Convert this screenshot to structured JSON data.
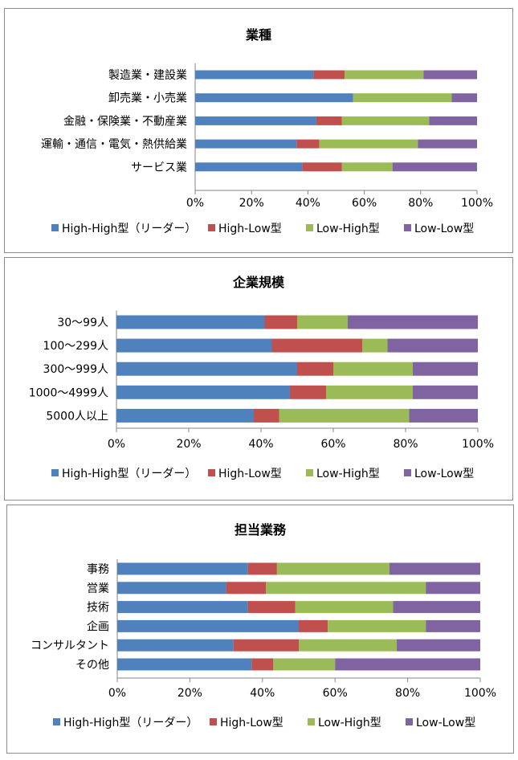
{
  "colors": {
    "High-High型（リーダー）": "#4f81bd",
    "High-Low型": "#c0504d",
    "Low-High型": "#9bbb59",
    "Low-Low型": "#8064a2"
  },
  "chart_data": [
    {
      "type": "bar",
      "orientation": "horizontal",
      "stacked": "percent",
      "title": "業種",
      "categories": [
        "製造業・建設業",
        "卸売業・小売業",
        "金融・保険業・不動産業",
        "運輸・通信・電気・熱供給業",
        "サービス業"
      ],
      "series": [
        {
          "name": "High-High型（リーダー）",
          "values": [
            42,
            56,
            43,
            36,
            38
          ]
        },
        {
          "name": "High-Low型",
          "values": [
            11,
            0,
            9,
            8,
            14
          ]
        },
        {
          "name": "Low-High型",
          "values": [
            28,
            35,
            31,
            35,
            18
          ]
        },
        {
          "name": "Low-Low型",
          "values": [
            19,
            9,
            17,
            21,
            30
          ]
        }
      ],
      "xticks": [
        "0%",
        "20%",
        "40%",
        "60%",
        "80%",
        "100%"
      ],
      "xlim": [
        0,
        100
      ],
      "legend": "bottom"
    },
    {
      "type": "bar",
      "orientation": "horizontal",
      "stacked": "percent",
      "title": "企業規模",
      "categories": [
        "30～99人",
        "100～299人",
        "300～999人",
        "1000～4999人",
        "5000人以上"
      ],
      "series": [
        {
          "name": "High-High型（リーダー）",
          "values": [
            41,
            43,
            50,
            48,
            38
          ]
        },
        {
          "name": "High-Low型",
          "values": [
            9,
            25,
            10,
            10,
            7
          ]
        },
        {
          "name": "Low-High型",
          "values": [
            14,
            7,
            22,
            24,
            36
          ]
        },
        {
          "name": "Low-Low型",
          "values": [
            36,
            25,
            18,
            18,
            19
          ]
        }
      ],
      "xticks": [
        "0%",
        "20%",
        "40%",
        "60%",
        "80%",
        "100%"
      ],
      "xlim": [
        0,
        100
      ],
      "legend": "bottom"
    },
    {
      "type": "bar",
      "orientation": "horizontal",
      "stacked": "percent",
      "title": "担当業務",
      "categories": [
        "事務",
        "営業",
        "技術",
        "企画",
        "コンサルタント",
        "その他"
      ],
      "series": [
        {
          "name": "High-High型（リーダー）",
          "values": [
            36,
            30,
            36,
            50,
            32,
            37
          ]
        },
        {
          "name": "High-Low型",
          "values": [
            8,
            11,
            13,
            8,
            18,
            6
          ]
        },
        {
          "name": "Low-High型",
          "values": [
            31,
            44,
            27,
            27,
            27,
            17
          ]
        },
        {
          "name": "Low-Low型",
          "values": [
            25,
            15,
            24,
            15,
            23,
            40
          ]
        }
      ],
      "xticks": [
        "0%",
        "20%",
        "40%",
        "60%",
        "80%",
        "100%"
      ],
      "xlim": [
        0,
        100
      ],
      "legend": "bottom"
    }
  ]
}
